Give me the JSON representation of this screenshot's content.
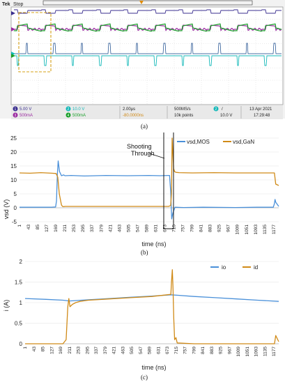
{
  "scope": {
    "brand": "Tek",
    "status": "Stop",
    "channels": [
      {
        "id": "1",
        "setting": "5.00 V",
        "color": "#3a2e8f"
      },
      {
        "id": "2",
        "setting": "10.0 V",
        "color": "#14b8b8"
      },
      {
        "id": "3",
        "setting": "500mA",
        "color": "#9a2aa0"
      },
      {
        "id": "4",
        "setting": "500mA",
        "color": "#1aa02a"
      }
    ],
    "timebase": "2.00µs",
    "offset": "-80.0000ns",
    "sample_rate": "500MS/s",
    "record": "10k points",
    "trigger_ch": "2",
    "trigger_level": "10.0 V",
    "date": "13 Apr 2021",
    "time": "17:29:48",
    "caption": "(a)"
  },
  "chart_data": [
    {
      "type": "line",
      "caption": "(b)",
      "xlabel": "time (ns)",
      "ylabel": "vsd (V)",
      "ylim": [
        -5,
        25
      ],
      "yticks": [
        -5,
        0,
        5,
        10,
        15,
        20,
        25
      ],
      "xlim": [
        1,
        1200
      ],
      "xticks": [
        1,
        43,
        85,
        127,
        169,
        211,
        253,
        295,
        337,
        379,
        421,
        463,
        505,
        547,
        589,
        631,
        673,
        715,
        757,
        799,
        841,
        883,
        925,
        967,
        1009,
        1051,
        1093,
        1135,
        1177
      ],
      "legend_position": "top-right",
      "annotation": {
        "line1": "Shooting",
        "line2": "Through"
      },
      "series": [
        {
          "name": "vsd,MOS",
          "color": "#4a90d9",
          "x": [
            1,
            150,
            168,
            172,
            176,
            180,
            186,
            195,
            205,
            211,
            240,
            300,
            400,
            500,
            600,
            650,
            690,
            695,
            700,
            705,
            710,
            720,
            760,
            850,
            1000,
            1100,
            1175,
            1180,
            1183,
            1186,
            1200
          ],
          "y": [
            0.2,
            0.2,
            0.3,
            2.5,
            12,
            16.8,
            13,
            11.5,
            11.8,
            11.5,
            11.6,
            11.4,
            11.6,
            11.5,
            11.6,
            11.5,
            11.6,
            11.6,
            6,
            -4,
            -2,
            0.2,
            0.1,
            0.2,
            0.1,
            0.2,
            0.2,
            1.5,
            3,
            2,
            0.5
          ]
        },
        {
          "name": "vsd,GaN",
          "color": "#d08a17",
          "x": [
            1,
            50,
            100,
            150,
            170,
            178,
            185,
            195,
            200,
            205,
            211,
            260,
            300,
            400,
            500,
            600,
            660,
            690,
            700,
            704,
            707,
            710,
            714,
            718,
            725,
            740,
            800,
            900,
            1000,
            1100,
            1180,
            1186,
            1200
          ],
          "y": [
            12.5,
            12.4,
            12.6,
            12.4,
            12.3,
            11,
            5,
            1,
            0.5,
            0.4,
            0.5,
            0.5,
            0.5,
            0.5,
            0.5,
            0.5,
            0.5,
            0.5,
            0.8,
            5,
            25,
            20,
            14,
            13,
            12.7,
            12.6,
            12.5,
            12.6,
            12.5,
            12.5,
            12.5,
            8.5,
            8
          ]
        }
      ]
    },
    {
      "type": "line",
      "caption": "(c)",
      "xlabel": "time (ns)",
      "ylabel": "i (A)",
      "ylim": [
        0,
        2
      ],
      "yticks": [
        0,
        0.5,
        1,
        1.5,
        2
      ],
      "xlim": [
        1,
        1200
      ],
      "xticks": [
        1,
        43,
        85,
        127,
        169,
        211,
        253,
        295,
        337,
        379,
        421,
        463,
        505,
        547,
        589,
        631,
        673,
        715,
        757,
        799,
        841,
        883,
        925,
        967,
        1009,
        1051,
        1093,
        1135,
        1177
      ],
      "legend_position": "top-right",
      "series": [
        {
          "name": "io",
          "color": "#4a90d9",
          "x": [
            1,
            100,
            180,
            211,
            300,
            400,
            500,
            600,
            690,
            720,
            800,
            900,
            1000,
            1100,
            1200
          ],
          "y": [
            1.1,
            1.08,
            1.06,
            1.04,
            1.07,
            1.1,
            1.13,
            1.16,
            1.19,
            1.18,
            1.15,
            1.12,
            1.09,
            1.06,
            1.03
          ]
        },
        {
          "name": "id",
          "color": "#d08a17",
          "x": [
            1,
            150,
            180,
            195,
            203,
            208,
            213,
            225,
            240,
            260,
            300,
            400,
            500,
            600,
            690,
            693,
            697,
            700,
            704,
            708,
            714,
            720,
            800,
            900,
            1000,
            1100,
            1180,
            1186,
            1200
          ],
          "y": [
            0,
            0,
            0,
            0.1,
            0.9,
            1.1,
            0.9,
            0.96,
            1.0,
            1.03,
            1.06,
            1.09,
            1.12,
            1.15,
            1.2,
            1.5,
            1.8,
            1.4,
            0.6,
            0.1,
            0.15,
            0.02,
            0,
            0,
            0,
            0,
            0,
            0.2,
            0.05
          ]
        }
      ]
    }
  ]
}
